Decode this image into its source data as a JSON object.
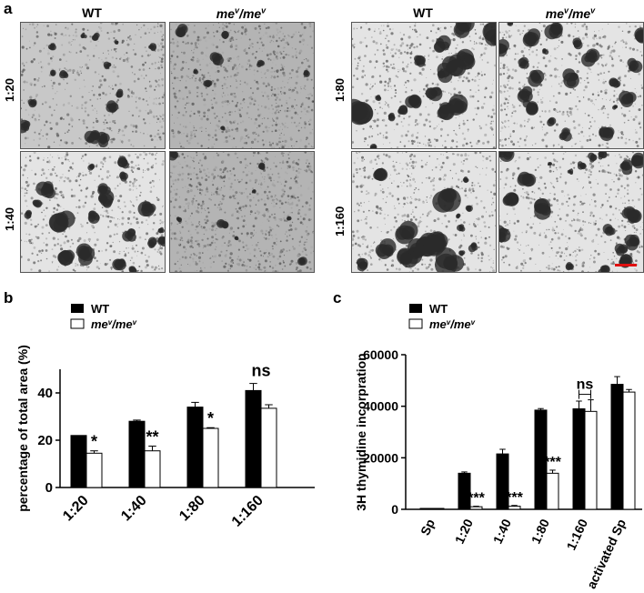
{
  "figure": {
    "panel_a": {
      "letter": "a",
      "columns_left": [
        "WT",
        "me",
        "me"
      ],
      "col_wt": "WT",
      "col_mut_base": "me",
      "col_mut_sup": "v",
      "col_mut_sep": "/",
      "rows_left": [
        "1:20",
        "1:40"
      ],
      "rows_right": [
        "1:80",
        "1:160"
      ]
    },
    "panel_b": {
      "letter": "b",
      "legend_wt": "WT",
      "legend_mut_base": "me",
      "legend_mut_sup": "v",
      "legend_mut_sep": "/"
    },
    "panel_c": {
      "letter": "c",
      "legend_wt": "WT",
      "legend_mut_base": "me",
      "legend_mut_sup": "v",
      "legend_mut_sep": "/"
    }
  },
  "chart_data": [
    {
      "type": "bar",
      "panel": "b",
      "ylabel": "percentage of total area (%)",
      "categories": [
        "1:20",
        "1:40",
        "1:80",
        "1:160"
      ],
      "ylim": [
        0,
        50
      ],
      "yticks": [
        0,
        20,
        40
      ],
      "series": [
        {
          "name": "WT",
          "color": "#000000",
          "values": [
            22,
            28,
            34,
            41
          ],
          "errors": [
            0,
            0.5,
            2,
            3
          ]
        },
        {
          "name": "meᵛ/meᵛ",
          "color": "#ffffff",
          "values": [
            14.5,
            15.5,
            25,
            33.5
          ],
          "errors": [
            1,
            2,
            0.3,
            1.5
          ]
        }
      ],
      "annotations": [
        "*",
        "**",
        "*",
        "ns"
      ]
    },
    {
      "type": "bar",
      "panel": "c",
      "ylabel": "3H thymidine incorpration",
      "categories": [
        "Sp",
        "1:20",
        "1:40",
        "1:80",
        "1:160",
        "activated Sp"
      ],
      "ylim": [
        0,
        60000
      ],
      "yticks": [
        0,
        20000,
        40000,
        60000
      ],
      "series": [
        {
          "name": "WT",
          "color": "#000000",
          "values": [
            0,
            14000,
            21500,
            38500,
            39000,
            48500
          ],
          "errors": [
            0,
            500,
            1800,
            600,
            3000,
            3000
          ]
        },
        {
          "name": "meᵛ/meᵛ",
          "color": "#ffffff",
          "values": [
            0,
            1000,
            1200,
            14000,
            38000,
            45500
          ],
          "errors": [
            0,
            200,
            300,
            1200,
            4500,
            1000
          ]
        }
      ],
      "annotations": [
        "",
        "***",
        "***",
        "***",
        "ns",
        ""
      ]
    }
  ]
}
